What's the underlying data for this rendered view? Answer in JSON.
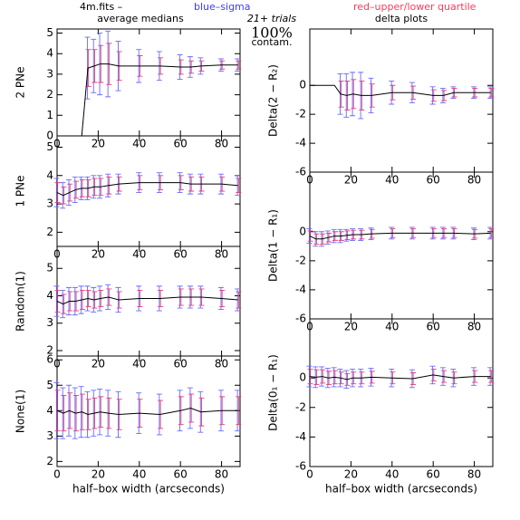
{
  "header": {
    "file": "4m.fits  –",
    "blue": "blue–sigma",
    "red": "red–upper/lower quartile",
    "left_title": "average medians",
    "trials": "21+ trials",
    "contam": "100%",
    "contam_label": "contam.",
    "right_title": "delta plots"
  },
  "chart_data": [
    {
      "type": "errorline",
      "ylabel": "2 PNe",
      "xlim": [
        0,
        89
      ],
      "ylim": [
        0,
        5.2
      ],
      "xticks": [
        0,
        20,
        40,
        60,
        80
      ],
      "yticks": [
        0,
        1,
        2,
        3,
        4,
        5
      ],
      "x": [
        0,
        3,
        6,
        9,
        12,
        15,
        18,
        21,
        25,
        30,
        40,
        50,
        60,
        65,
        70,
        80,
        88
      ],
      "values": [
        0,
        0,
        0,
        0,
        0,
        3.3,
        3.4,
        3.5,
        3.5,
        3.4,
        3.4,
        3.4,
        3.35,
        3.35,
        3.4,
        3.45,
        3.45
      ],
      "sigma": [
        null,
        null,
        null,
        null,
        null,
        1.5,
        1.3,
        1.5,
        1.6,
        1.2,
        0.8,
        0.7,
        0.6,
        0.5,
        0.4,
        0.3,
        0.3
      ],
      "quartile": [
        null,
        null,
        null,
        null,
        null,
        0.9,
        0.8,
        0.9,
        1.0,
        0.7,
        0.5,
        0.4,
        0.35,
        0.3,
        0.25,
        0.2,
        0.2
      ]
    },
    {
      "type": "errorline",
      "ylabel": "1 PNe",
      "xlim": [
        0,
        89
      ],
      "ylim": [
        1.5,
        5.4
      ],
      "xticks": [
        0,
        20,
        40,
        60,
        80
      ],
      "yticks": [
        2,
        3,
        4,
        5
      ],
      "x": [
        0,
        3,
        6,
        9,
        12,
        15,
        18,
        21,
        25,
        30,
        40,
        50,
        60,
        65,
        70,
        80,
        88
      ],
      "values": [
        3.4,
        3.3,
        3.4,
        3.5,
        3.55,
        3.55,
        3.6,
        3.6,
        3.65,
        3.7,
        3.75,
        3.75,
        3.75,
        3.7,
        3.7,
        3.7,
        3.65
      ],
      "sigma": [
        0.5,
        0.45,
        0.45,
        0.45,
        0.4,
        0.4,
        0.4,
        0.4,
        0.4,
        0.35,
        0.35,
        0.35,
        0.35,
        0.35,
        0.35,
        0.35,
        0.35
      ],
      "quartile": [
        0.35,
        0.3,
        0.3,
        0.3,
        0.3,
        0.3,
        0.3,
        0.3,
        0.3,
        0.25,
        0.25,
        0.25,
        0.25,
        0.25,
        0.25,
        0.25,
        0.25
      ]
    },
    {
      "type": "errorline",
      "ylabel": "Random(1)",
      "xlim": [
        0,
        89
      ],
      "ylim": [
        1.8,
        5.8
      ],
      "xticks": [
        0,
        20,
        40,
        60,
        80
      ],
      "yticks": [
        2,
        3,
        4,
        5
      ],
      "x": [
        0,
        3,
        6,
        9,
        12,
        15,
        18,
        21,
        25,
        30,
        40,
        50,
        60,
        65,
        70,
        80,
        88
      ],
      "values": [
        3.8,
        3.7,
        3.8,
        3.8,
        3.85,
        3.9,
        3.85,
        3.9,
        3.95,
        3.85,
        3.9,
        3.9,
        3.95,
        3.95,
        3.95,
        3.9,
        3.85
      ],
      "sigma": [
        0.55,
        0.5,
        0.5,
        0.5,
        0.5,
        0.45,
        0.45,
        0.45,
        0.45,
        0.45,
        0.45,
        0.45,
        0.4,
        0.4,
        0.4,
        0.4,
        0.4
      ],
      "quartile": [
        0.4,
        0.35,
        0.35,
        0.35,
        0.35,
        0.3,
        0.3,
        0.3,
        0.3,
        0.3,
        0.3,
        0.3,
        0.3,
        0.3,
        0.3,
        0.3,
        0.3
      ]
    },
    {
      "type": "errorline",
      "ylabel": "None(1)",
      "xlim": [
        0,
        89
      ],
      "ylim": [
        1.8,
        6.15
      ],
      "xticks": [
        0,
        20,
        40,
        60,
        80
      ],
      "yticks": [
        2,
        3,
        4,
        5,
        6
      ],
      "x": [
        0,
        3,
        6,
        9,
        12,
        15,
        18,
        21,
        25,
        30,
        40,
        50,
        60,
        65,
        70,
        80,
        88
      ],
      "values": [
        4.0,
        3.9,
        4.0,
        3.9,
        3.95,
        3.85,
        3.9,
        3.95,
        3.9,
        3.85,
        3.9,
        3.85,
        4.0,
        4.1,
        3.95,
        4.0,
        4.0
      ],
      "sigma": [
        1.1,
        1.0,
        1.0,
        1.0,
        1.0,
        0.9,
        0.9,
        0.9,
        0.9,
        0.9,
        0.8,
        0.8,
        0.8,
        0.8,
        0.8,
        0.8,
        0.8
      ],
      "quartile": [
        0.8,
        0.7,
        0.7,
        0.7,
        0.7,
        0.6,
        0.6,
        0.6,
        0.6,
        0.6,
        0.55,
        0.55,
        0.55,
        0.55,
        0.55,
        0.55,
        0.55
      ],
      "xlabel": "half–box width (arcseconds)"
    },
    {
      "type": "errorline",
      "ylabel": "Delta(2 − R₂)",
      "xlim": [
        0,
        89
      ],
      "ylim": [
        -6,
        3.9
      ],
      "xticks": [
        0,
        20,
        40,
        60,
        80
      ],
      "yticks": [
        0,
        -2,
        -4,
        -6
      ],
      "x": [
        0,
        3,
        6,
        9,
        12,
        15,
        18,
        21,
        25,
        30,
        40,
        50,
        60,
        65,
        70,
        80,
        88
      ],
      "values": [
        0,
        0,
        0,
        0,
        0,
        -0.6,
        -0.7,
        -0.6,
        -0.7,
        -0.7,
        -0.5,
        -0.5,
        -0.7,
        -0.7,
        -0.5,
        -0.5,
        -0.5
      ],
      "sigma": [
        null,
        null,
        null,
        null,
        null,
        1.4,
        1.5,
        1.5,
        1.6,
        1.2,
        0.8,
        0.7,
        0.6,
        0.5,
        0.4,
        0.4,
        0.4
      ],
      "quartile": [
        null,
        null,
        null,
        null,
        null,
        0.9,
        1.0,
        1.0,
        1.0,
        0.8,
        0.5,
        0.45,
        0.4,
        0.35,
        0.3,
        0.3,
        0.3
      ]
    },
    {
      "type": "errorline",
      "ylabel": "Delta(1 − R₁)",
      "xlim": [
        0,
        89
      ],
      "ylim": [
        -6,
        4.1
      ],
      "xticks": [
        0,
        20,
        40,
        60,
        80
      ],
      "yticks": [
        0,
        -2,
        -4,
        -6
      ],
      "x": [
        0,
        3,
        6,
        9,
        12,
        15,
        18,
        21,
        25,
        30,
        40,
        50,
        60,
        65,
        70,
        80,
        88
      ],
      "values": [
        -0.3,
        -0.5,
        -0.5,
        -0.4,
        -0.3,
        -0.3,
        -0.25,
        -0.2,
        -0.2,
        -0.15,
        -0.1,
        -0.1,
        -0.1,
        -0.1,
        -0.1,
        -0.15,
        -0.1
      ],
      "sigma": [
        0.5,
        0.5,
        0.5,
        0.45,
        0.45,
        0.45,
        0.4,
        0.4,
        0.4,
        0.4,
        0.4,
        0.4,
        0.4,
        0.4,
        0.4,
        0.4,
        0.4
      ],
      "quartile": [
        0.35,
        0.35,
        0.35,
        0.3,
        0.3,
        0.3,
        0.3,
        0.3,
        0.3,
        0.3,
        0.3,
        0.3,
        0.3,
        0.3,
        0.3,
        0.3,
        0.3
      ]
    },
    {
      "type": "errorline",
      "ylabel": "Delta(0₁ − R₁)",
      "xlim": [
        0,
        89
      ],
      "ylim": [
        -6,
        4
      ],
      "xticks": [
        0,
        20,
        40,
        60,
        80
      ],
      "yticks": [
        0,
        -2,
        -4,
        -6
      ],
      "x": [
        0,
        3,
        6,
        9,
        12,
        15,
        18,
        21,
        25,
        30,
        40,
        50,
        60,
        65,
        70,
        80,
        88
      ],
      "values": [
        0.1,
        0.05,
        0.1,
        0,
        0.05,
        0,
        -0.1,
        0,
        0,
        0.05,
        0,
        -0.05,
        0.2,
        0.1,
        0,
        0.1,
        0.1
      ],
      "sigma": [
        0.7,
        0.7,
        0.65,
        0.65,
        0.65,
        0.6,
        0.6,
        0.6,
        0.6,
        0.6,
        0.6,
        0.6,
        0.6,
        0.6,
        0.6,
        0.6,
        0.6
      ],
      "quartile": [
        0.5,
        0.5,
        0.45,
        0.45,
        0.45,
        0.4,
        0.4,
        0.4,
        0.4,
        0.4,
        0.4,
        0.4,
        0.4,
        0.4,
        0.4,
        0.4,
        0.4
      ],
      "xlabel": "half–box width (arcseconds)"
    }
  ]
}
